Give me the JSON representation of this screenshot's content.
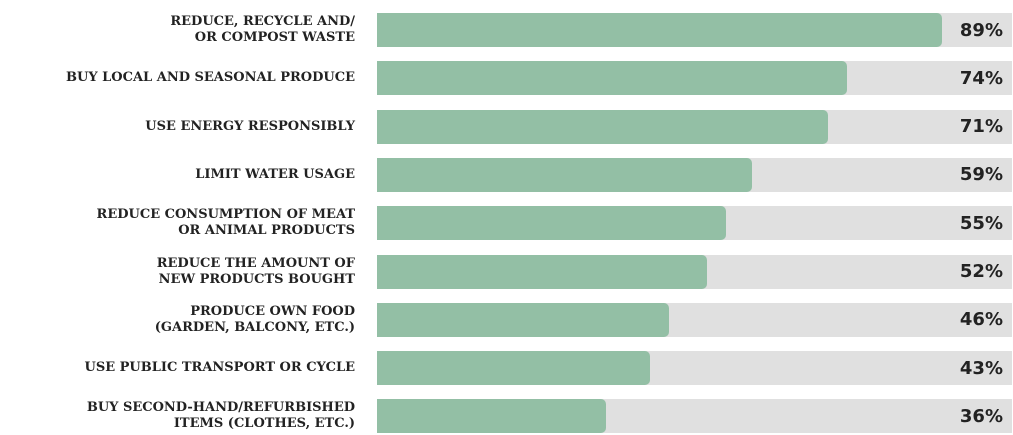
{
  "chart_data": {
    "type": "bar",
    "categories": [
      "REDUCE, RECYCLE AND/\nOR COMPOST WASTE",
      "BUY LOCAL AND SEASONAL PRODUCE",
      "USE ENERGY RESPONSIBLY",
      "LIMIT WATER USAGE",
      "REDUCE CONSUMPTION OF MEAT\nOR ANIMAL PRODUCTS",
      "REDUCE THE AMOUNT OF\nNEW PRODUCTS BOUGHT",
      "PRODUCE OWN FOOD\n(GARDEN, BALCONY, ETC.)",
      "USE PUBLIC TRANSPORT OR CYCLE",
      "BUY SECOND-HAND/REFURBISHED\nITEMS (CLOTHES, ETC.)"
    ],
    "values": [
      89,
      74,
      71,
      59,
      55,
      52,
      46,
      43,
      36
    ],
    "value_labels": [
      "89%",
      "74%",
      "71%",
      "59%",
      "55%",
      "52%",
      "46%",
      "43%",
      "36%"
    ],
    "color": "#93bfa5",
    "xlim": [
      0,
      100
    ]
  }
}
